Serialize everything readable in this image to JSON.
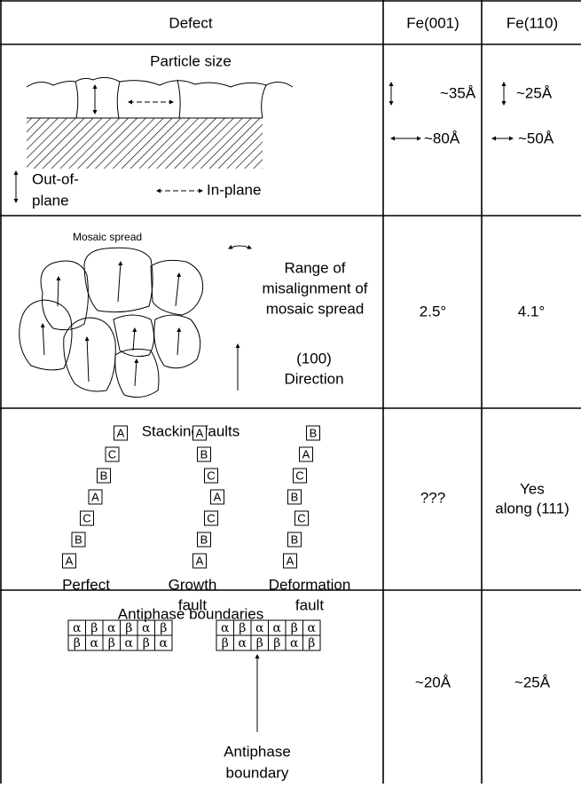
{
  "header": [
    "Defect",
    "Fe(001)",
    "Fe(110)"
  ],
  "rows": [
    {
      "defect": {
        "title": "Particle size",
        "out_of_plane": [
          "Out-of-",
          "plane"
        ],
        "in_plane": "In-plane"
      },
      "fe001": [
        "~35Å",
        "~80Å"
      ],
      "fe110": [
        "~25Å",
        "~50Å"
      ]
    },
    {
      "defect": {
        "title": "Mosaic spread",
        "range": [
          "Range of",
          "misalignment of",
          "mosaic spread"
        ],
        "direction": [
          "(100)",
          "Direction"
        ]
      },
      "fe001": "2.5°",
      "fe110": "4.1°"
    },
    {
      "defect": {
        "title": "Stacking faults",
        "stacks": [
          {
            "label": "Perfect",
            "layers": [
              "A",
              "C",
              "B",
              "A",
              "C",
              "B",
              "A"
            ]
          },
          {
            "label": [
              "Growth",
              "fault"
            ],
            "layers": [
              "A",
              "B",
              "C",
              "A",
              "C",
              "B",
              "A"
            ]
          },
          {
            "label": [
              "Deformation",
              "fault"
            ],
            "layers": [
              "B",
              "A",
              "C",
              "B",
              "C",
              "B",
              "A"
            ]
          }
        ]
      },
      "fe001": "???",
      "fe110": [
        "Yes",
        "along (111)"
      ]
    },
    {
      "defect": {
        "title": "Antiphase boundaries",
        "grids": [
          [
            [
              "α",
              "β",
              "α",
              "β",
              "α",
              "β"
            ],
            [
              "β",
              "α",
              "β",
              "α",
              "β",
              "α"
            ]
          ],
          [
            [
              "α",
              "β",
              "α",
              "α",
              "β",
              "α"
            ],
            [
              "β",
              "α",
              "β",
              "β",
              "α",
              "β"
            ]
          ]
        ],
        "boundary": [
          "Antiphase",
          "boundary"
        ]
      },
      "fe001": "~20Å",
      "fe110": "~25Å"
    }
  ]
}
